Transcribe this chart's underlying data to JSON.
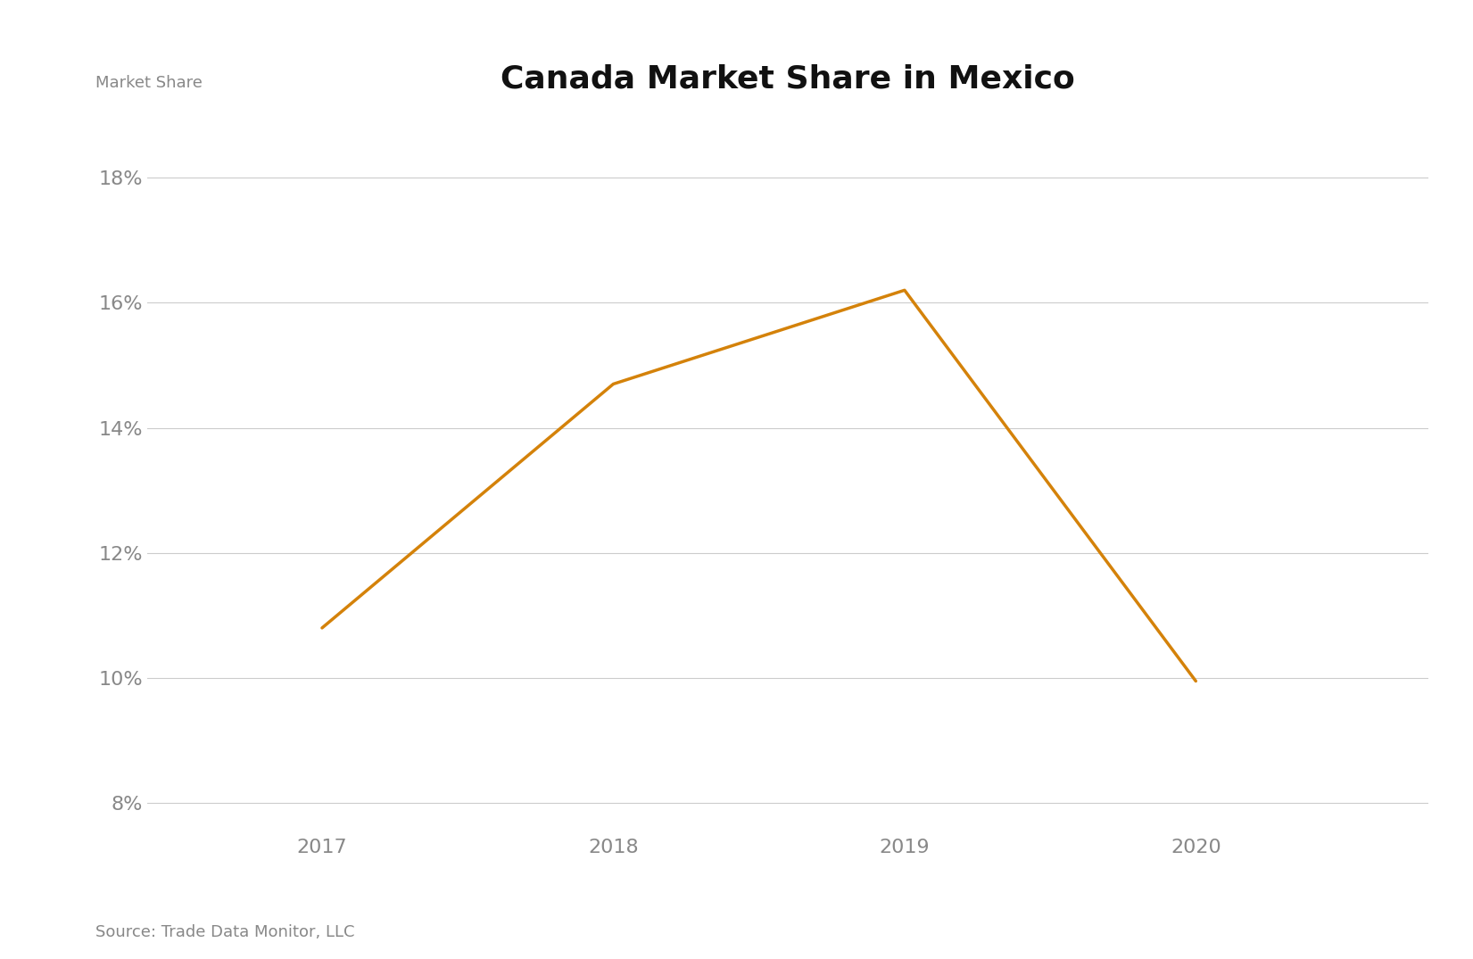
{
  "title": "Canada Market Share in Mexico",
  "ylabel": "Market Share",
  "source": "Source: Trade Data Monitor, LLC",
  "years": [
    2017,
    2018,
    2019,
    2020
  ],
  "values": [
    10.8,
    14.7,
    16.2,
    9.95
  ],
  "line_color": "#D4820A",
  "line_width": 2.5,
  "ylim": [
    7.5,
    19.0
  ],
  "yticks": [
    8,
    10,
    12,
    14,
    16,
    18
  ],
  "grid_color": "#cccccc",
  "tick_color": "#aaaaaa",
  "label_color": "#888888",
  "title_color": "#111111",
  "background_color": "#ffffff",
  "title_fontsize": 26,
  "ylabel_fontsize": 13,
  "tick_fontsize": 16,
  "source_fontsize": 13,
  "xlim": [
    2016.4,
    2020.8
  ]
}
